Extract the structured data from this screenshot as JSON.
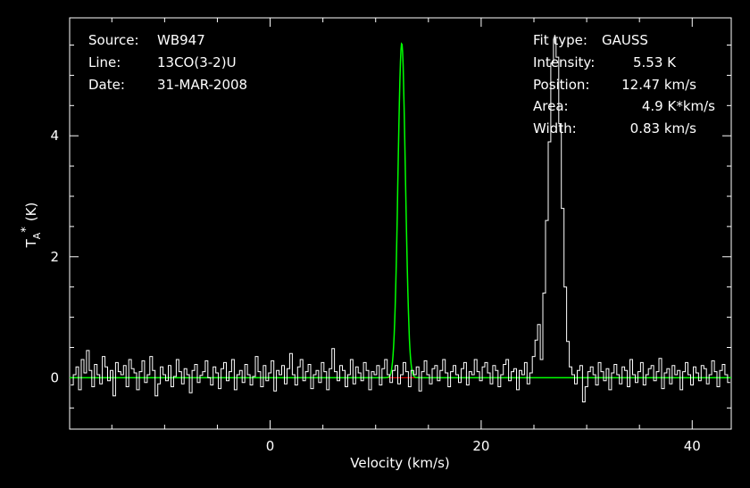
{
  "chart_data": {
    "type": "line",
    "xlabel": "Velocity (km/s)",
    "ylabel": {
      "base": "T",
      "sub": "A",
      "sup": "*",
      "unit": "(K)"
    },
    "xlim": [
      -19,
      43.7
    ],
    "ylim": [
      -0.85,
      5.95
    ],
    "x_ticks": [
      0,
      20,
      40
    ],
    "x_tick_labels": [
      "0",
      "20",
      "40"
    ],
    "y_ticks": [
      0,
      2,
      4
    ],
    "y_tick_labels": [
      "0",
      "2",
      "4"
    ],
    "grid": false,
    "colors": {
      "spectrum": "#ffffff",
      "fit": "#00ff00",
      "baseline": "#ff0000",
      "frame": "#ffffff",
      "background": "#000000"
    },
    "fit": {
      "amplitude": 5.53,
      "center": 12.47,
      "fwhm": 0.83
    },
    "series": [
      {
        "x_start": -18.9,
        "x_step": 0.25,
        "values": [
          -0.12,
          0.05,
          0.18,
          -0.2,
          0.3,
          0.08,
          0.45,
          0.12,
          -0.15,
          0.22,
          0.05,
          -0.1,
          0.35,
          0.18,
          -0.05,
          0.12,
          -0.3,
          0.25,
          0.1,
          0.05,
          0.2,
          -0.15,
          0.3,
          0.15,
          0.08,
          -0.2,
          0.1,
          0.28,
          -0.08,
          0.05,
          0.35,
          0.12,
          -0.3,
          -0.1,
          0.18,
          0.05,
          -0.05,
          0.2,
          -0.15,
          0.02,
          0.3,
          0.1,
          -0.1,
          0.15,
          0.05,
          -0.25,
          0.12,
          0.22,
          -0.08,
          0.04,
          0.1,
          0.28,
          0.0,
          -0.12,
          0.18,
          0.08,
          -0.18,
          0.15,
          0.25,
          -0.05,
          0.1,
          0.3,
          -0.2,
          0.05,
          0.12,
          -0.08,
          0.22,
          0.05,
          -0.12,
          0.02,
          0.35,
          0.1,
          -0.15,
          0.2,
          -0.05,
          0.08,
          0.28,
          -0.22,
          0.12,
          0.05,
          0.2,
          -0.1,
          0.15,
          0.4,
          0.05,
          -0.12,
          0.18,
          0.3,
          -0.05,
          0.1,
          0.22,
          -0.18,
          0.05,
          0.12,
          -0.08,
          0.25,
          0.1,
          -0.2,
          0.15,
          0.48,
          0.1,
          -0.05,
          0.2,
          0.12,
          -0.15,
          0.05,
          0.3,
          -0.1,
          0.18,
          0.08,
          -0.05,
          0.25,
          0.12,
          -0.2,
          0.1,
          0.05,
          0.2,
          -0.12,
          0.15,
          0.3,
          0.05,
          -0.08,
          0.12,
          0.2,
          -0.1,
          0.05,
          0.25,
          0.1,
          -0.15,
          0.12,
          0.05,
          0.18,
          -0.22,
          0.1,
          0.28,
          0.05,
          -0.1,
          0.15,
          0.2,
          -0.05,
          0.12,
          0.3,
          0.08,
          -0.15,
          0.1,
          0.2,
          0.05,
          -0.08,
          0.15,
          0.25,
          -0.12,
          0.1,
          0.05,
          0.3,
          0.1,
          -0.05,
          0.18,
          0.25,
          0.08,
          -0.1,
          0.2,
          0.12,
          -0.15,
          0.05,
          0.22,
          0.3,
          -0.05,
          0.1,
          0.15,
          -0.2,
          0.12,
          0.05,
          0.25,
          -0.1,
          0.08,
          0.35,
          0.62,
          0.88,
          0.3,
          1.4,
          2.6,
          3.9,
          5.2,
          5.6,
          5.3,
          4.2,
          2.8,
          1.5,
          0.6,
          0.18,
          0.05,
          -0.1,
          0.12,
          0.2,
          -0.4,
          -0.15,
          0.1,
          0.18,
          0.05,
          -0.12,
          0.25,
          0.1,
          -0.05,
          0.15,
          -0.2,
          0.08,
          0.22,
          0.05,
          -0.1,
          0.18,
          0.12,
          -0.15,
          0.3,
          0.05,
          -0.08,
          0.1,
          0.25,
          -0.12,
          0.05,
          0.15,
          0.2,
          -0.05,
          0.1,
          0.32,
          -0.18,
          0.08,
          0.15,
          -0.1,
          0.2,
          0.05,
          0.12,
          -0.2,
          0.1,
          0.25,
          0.05,
          -0.12,
          0.18,
          0.08,
          -0.05,
          0.2,
          0.15,
          -0.1,
          0.05,
          0.28,
          0.1,
          -0.15,
          0.12,
          0.22,
          0.05,
          -0.08,
          0.15,
          0.1,
          -0.2,
          0.3,
          0.05,
          -0.12,
          0.18,
          0.08,
          0.25,
          -0.05,
          0.1,
          0.15,
          -0.18,
          0.2,
          0.05,
          0.12,
          -0.1,
          0.35,
          0.08,
          -0.15,
          0.22,
          0.05,
          0.12,
          -0.2,
          0.1,
          0.18,
          0.05,
          -0.08,
          0.25,
          0.12,
          -0.1,
          0.15,
          0.3,
          -0.05,
          0.08,
          0.2,
          -0.15,
          0.12,
          0.05,
          0.25,
          -0.12,
          0.1,
          0.18,
          0.05,
          -0.2,
          0.28,
          0.1,
          -0.05,
          0.15,
          0.08,
          -0.12,
          0.22,
          0.05,
          0.1,
          -0.18,
          0.3,
          0.12,
          -0.08,
          0.2,
          0.05,
          0.15,
          -0.1,
          0.25,
          0.08,
          -0.15,
          0.12,
          0.05,
          0.2,
          -0.05,
          0.18,
          0.1,
          -0.12,
          0.3,
          0.05,
          0.15,
          -0.2,
          0.08,
          0.22,
          0.12,
          -0.1,
          0.05,
          0.25,
          0.1,
          -0.15,
          0.18,
          0.05,
          0.12,
          -0.25,
          0.2,
          0.1,
          0.05,
          -0.08,
          0.28,
          0.12,
          -0.12,
          0.15,
          0.05,
          0.2,
          -0.18,
          0.1,
          0.25,
          0.05,
          -0.1,
          0.15,
          0.08,
          -0.3,
          0.22,
          0.12,
          0.05,
          -0.1,
          0.18,
          0.3,
          0.05,
          -0.15,
          0.1,
          0.2,
          0.08,
          -0.12,
          0.15,
          0.05,
          0.25,
          -0.2,
          0.1,
          0.18,
          0.05,
          0.32,
          -0.1,
          0.12,
          0.2,
          0.05,
          -0.15,
          0.08,
          0.22,
          0.1,
          -0.08,
          0.15,
          0.05,
          0.25,
          -0.12,
          0.18,
          0.1,
          -0.2,
          0.3,
          0.05,
          0.12,
          -0.1,
          0.2,
          0.08,
          0.15,
          -0.15,
          0.05,
          0.25,
          0.12,
          -0.08,
          0.18,
          0.1,
          -0.12,
          0.22,
          0.05,
          0.15,
          0.3,
          -0.05,
          0.1,
          -0.18,
          0.2,
          0.12,
          0.05,
          0.25,
          -0.1,
          0.15,
          0.08,
          -0.2,
          0.18,
          0.05,
          0.12,
          -0.12,
          0.28,
          0.1,
          0.05,
          -0.08,
          0.2,
          0.15,
          -0.15,
          0.1,
          0.05,
          0.22,
          0.12,
          -0.1,
          0.18,
          0.3,
          -0.05,
          0.08,
          0.15,
          -0.2,
          0.12,
          0.05,
          0.25,
          0.1,
          -0.15,
          0.2,
          0.05,
          0.12,
          -0.08,
          0.18,
          0.35,
          -0.12,
          0.1,
          0.05,
          0.22,
          -0.15,
          0.15,
          0.08,
          0.3,
          -0.1,
          0.12,
          0.05,
          0.2,
          -0.2,
          0.1,
          0.18,
          0.05,
          -0.12,
          0.25,
          0.1,
          0.15,
          -0.08,
          0.05,
          0.22,
          -0.15,
          0.12,
          0.28,
          0.05,
          -0.1,
          0.18,
          0.1,
          -0.05,
          0.2,
          0.15,
          0.05,
          -0.18,
          0.12,
          0.3,
          0.08,
          -0.1,
          0.2,
          0.05,
          0.15,
          -0.12,
          0.25,
          0.1,
          -0.2,
          0.18,
          0.05,
          0.12,
          0.22,
          -0.08,
          0.1,
          0.15,
          -0.15,
          0.05,
          0.3,
          0.12,
          -0.1,
          0.2,
          0.05,
          -0.25,
          0.18,
          0.1,
          0.15,
          -0.08,
          0.22,
          0.05,
          0.12,
          -0.3,
          0.2
        ]
      }
    ]
  },
  "annotations": {
    "left": [
      {
        "key": "Source:",
        "value": "WB947"
      },
      {
        "key": "Line:",
        "value": "13CO(3-2)U"
      },
      {
        "key": "Date:",
        "value": "31-MAR-2008"
      }
    ],
    "right": [
      {
        "key": "Fit type:",
        "value": "GAUSS"
      },
      {
        "key": "Intensity:",
        "value": "5.53 K"
      },
      {
        "key": "Position:",
        "value": "12.47 km/s"
      },
      {
        "key": "Area:",
        "value": "4.9 K*km/s"
      },
      {
        "key": "Width:",
        "value": "0.83 km/s"
      }
    ]
  }
}
